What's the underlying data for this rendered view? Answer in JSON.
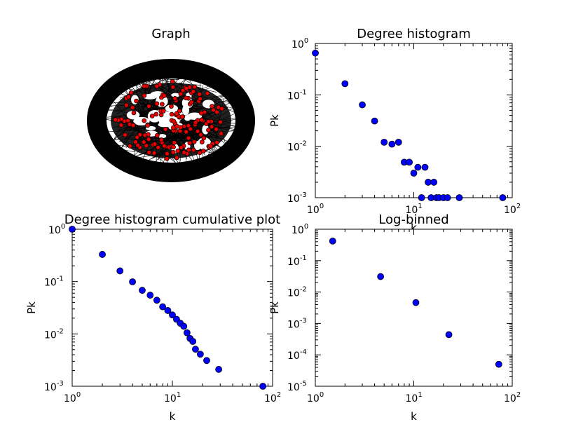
{
  "graph_panel": {
    "title": "Graph"
  },
  "chart_data": [
    {
      "type": "scatter",
      "title": "Degree histogram",
      "xlabel": "k",
      "ylabel": "Pk",
      "xscale": "log",
      "yscale": "log",
      "xlim": [
        1,
        100
      ],
      "ylim": [
        0.001,
        1
      ],
      "grid": false,
      "x_ticks": [
        1,
        10,
        100
      ],
      "y_ticks": [
        0.001,
        0.01,
        0.1,
        1
      ],
      "points": [
        {
          "x": 1,
          "y": 0.65
        },
        {
          "x": 2,
          "y": 0.165
        },
        {
          "x": 3,
          "y": 0.064
        },
        {
          "x": 4,
          "y": 0.031
        },
        {
          "x": 5,
          "y": 0.012
        },
        {
          "x": 6,
          "y": 0.011
        },
        {
          "x": 7,
          "y": 0.012
        },
        {
          "x": 8,
          "y": 0.0049
        },
        {
          "x": 9,
          "y": 0.0049
        },
        {
          "x": 10,
          "y": 0.003
        },
        {
          "x": 11,
          "y": 0.0039
        },
        {
          "x": 12,
          "y": 0.001
        },
        {
          "x": 13,
          "y": 0.0039
        },
        {
          "x": 14,
          "y": 0.002
        },
        {
          "x": 15,
          "y": 0.001
        },
        {
          "x": 16,
          "y": 0.002
        },
        {
          "x": 17,
          "y": 0.001
        },
        {
          "x": 18,
          "y": 0.001
        },
        {
          "x": 20,
          "y": 0.001
        },
        {
          "x": 22,
          "y": 0.001
        },
        {
          "x": 29,
          "y": 0.001
        },
        {
          "x": 80,
          "y": 0.001
        }
      ]
    },
    {
      "type": "scatter",
      "title": "Degree histogram cumulative plot",
      "xlabel": "k",
      "ylabel": "Pk",
      "xscale": "log",
      "yscale": "log",
      "xlim": [
        1,
        100
      ],
      "ylim": [
        0.001,
        1
      ],
      "grid": false,
      "x_ticks": [
        1,
        10,
        100
      ],
      "y_ticks": [
        0.001,
        0.01,
        0.1,
        1
      ],
      "points": [
        {
          "x": 1,
          "y": 1.0
        },
        {
          "x": 2,
          "y": 0.33
        },
        {
          "x": 3,
          "y": 0.16
        },
        {
          "x": 4,
          "y": 0.099
        },
        {
          "x": 5,
          "y": 0.068
        },
        {
          "x": 6,
          "y": 0.055
        },
        {
          "x": 7,
          "y": 0.044
        },
        {
          "x": 8,
          "y": 0.033
        },
        {
          "x": 9,
          "y": 0.028
        },
        {
          "x": 10,
          "y": 0.023
        },
        {
          "x": 11,
          "y": 0.019
        },
        {
          "x": 12,
          "y": 0.016
        },
        {
          "x": 13,
          "y": 0.014
        },
        {
          "x": 14,
          "y": 0.0105
        },
        {
          "x": 15,
          "y": 0.0082
        },
        {
          "x": 16,
          "y": 0.0072
        },
        {
          "x": 17,
          "y": 0.0051
        },
        {
          "x": 19,
          "y": 0.0041
        },
        {
          "x": 22,
          "y": 0.0031
        },
        {
          "x": 29,
          "y": 0.0021
        },
        {
          "x": 80,
          "y": 0.001
        }
      ]
    },
    {
      "type": "scatter",
      "title": "Log-binned",
      "xlabel": "k",
      "ylabel": "Pk",
      "xscale": "log",
      "yscale": "log",
      "xlim": [
        1,
        100
      ],
      "ylim": [
        1e-05,
        1
      ],
      "grid": false,
      "x_ticks": [
        1,
        10,
        100
      ],
      "y_ticks": [
        1e-05,
        0.0001,
        0.001,
        0.01,
        0.1,
        1
      ],
      "points": [
        {
          "x": 1.5,
          "y": 0.42
        },
        {
          "x": 4.6,
          "y": 0.031
        },
        {
          "x": 10.5,
          "y": 0.0046
        },
        {
          "x": 22.7,
          "y": 0.00044
        },
        {
          "x": 73,
          "y": 5e-05
        }
      ]
    }
  ]
}
